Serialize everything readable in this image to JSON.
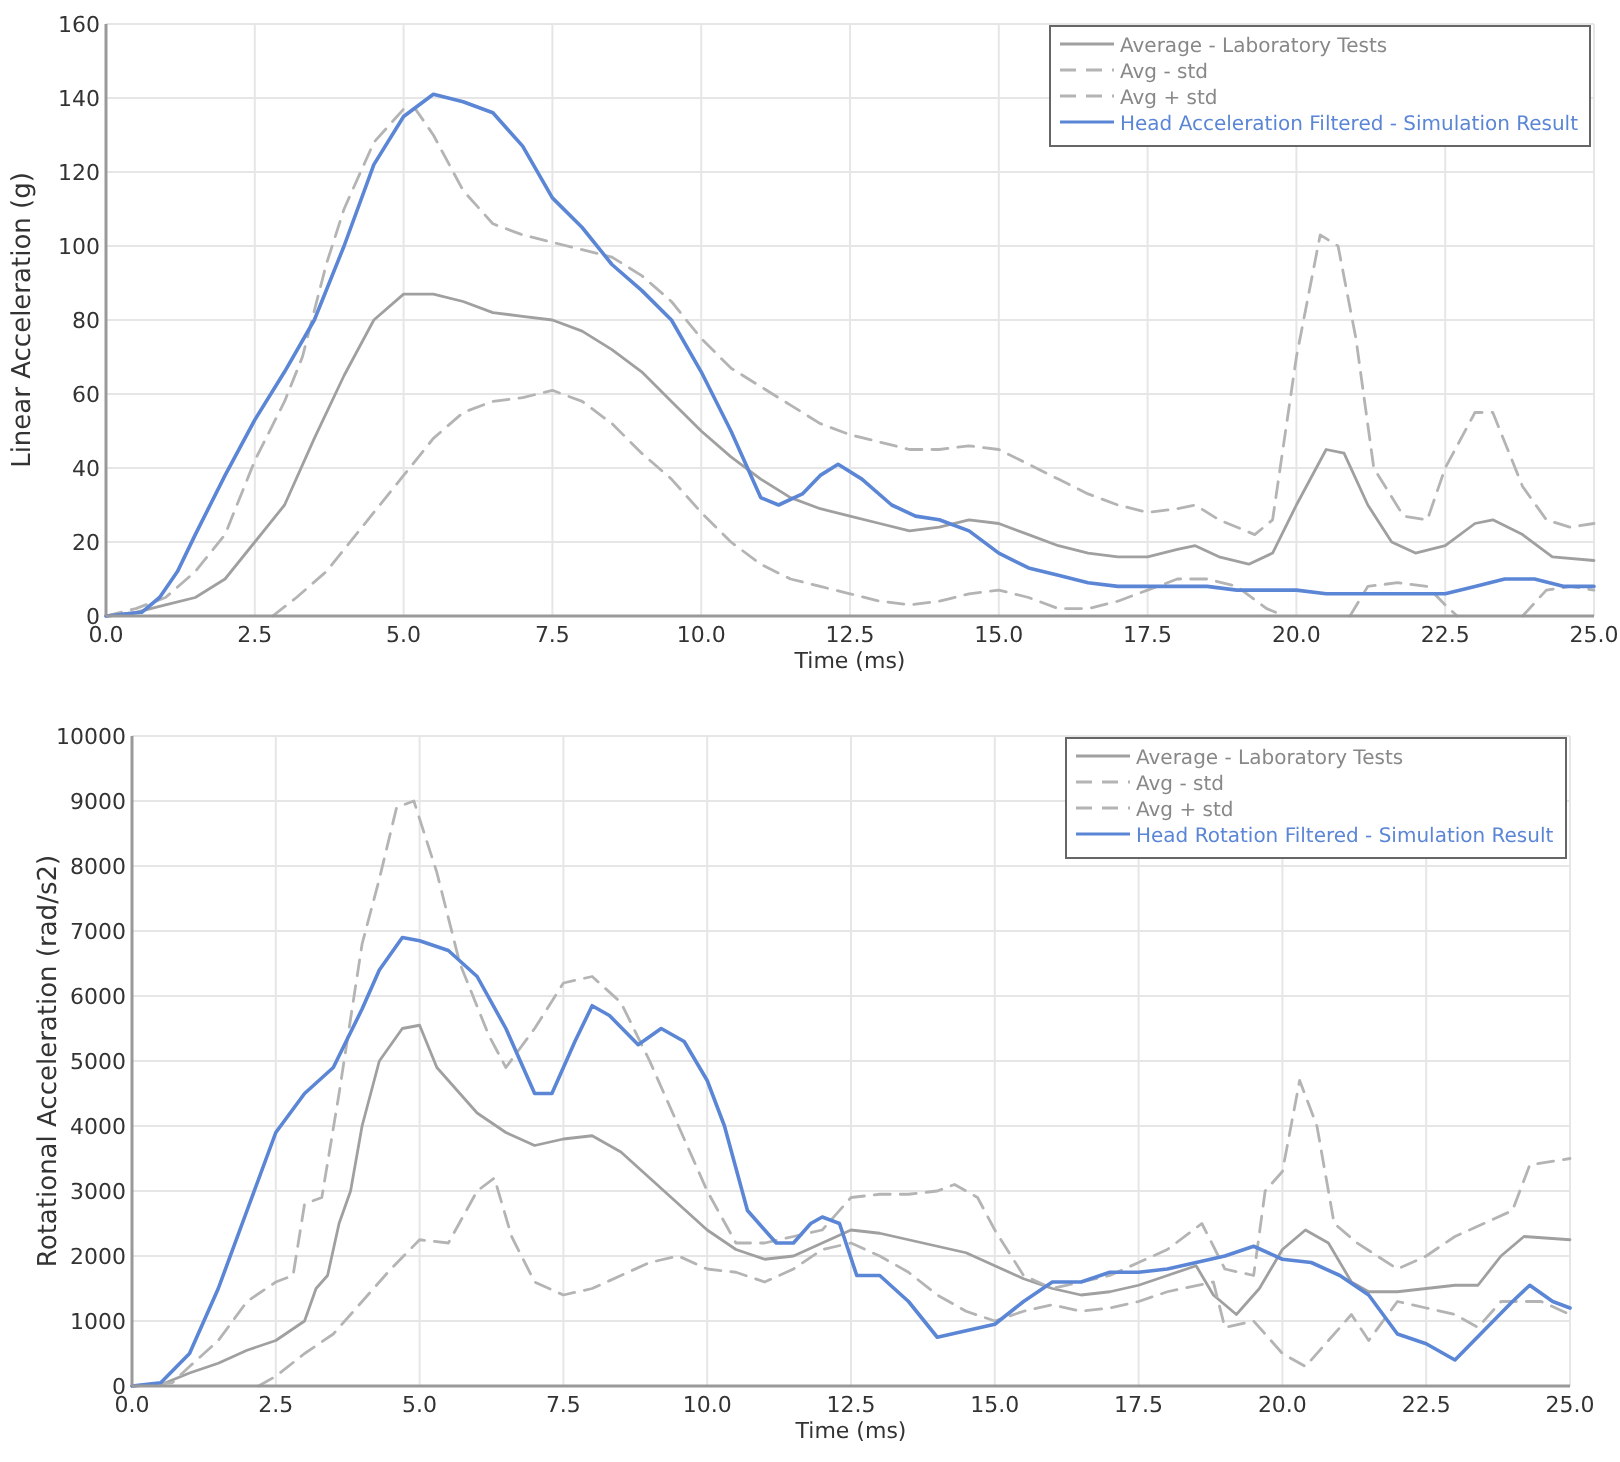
{
  "chart_data": [
    {
      "type": "line",
      "xlabel": "Time (ms)",
      "ylabel": "Linear Acceleration (g)",
      "xlim": [
        0,
        25
      ],
      "ylim": [
        0,
        160
      ],
      "xticks": [
        {
          "value": 0,
          "label": "0.0"
        },
        {
          "value": 2.5,
          "label": "2.5"
        },
        {
          "value": 5,
          "label": "5.0"
        },
        {
          "value": 7.5,
          "label": "7.5"
        },
        {
          "value": 10,
          "label": "10.0"
        },
        {
          "value": 12.5,
          "label": "12.5"
        },
        {
          "value": 15,
          "label": "15.0"
        },
        {
          "value": 17.5,
          "label": "17.5"
        },
        {
          "value": 20,
          "label": "20.0"
        },
        {
          "value": 22.5,
          "label": "22.5"
        },
        {
          "value": 25,
          "label": "25.0"
        }
      ],
      "yticks": [
        0,
        20,
        40,
        60,
        80,
        100,
        120,
        140,
        160
      ],
      "grid": true,
      "legend": "top right",
      "series": [
        {
          "name": "Average - Laboratory Tests",
          "color": "#a0a0a0",
          "line_style": "solid",
          "x": [
            0,
            0.5,
            1,
            1.5,
            2,
            2.5,
            3,
            3.5,
            4,
            4.5,
            5,
            5.5,
            6,
            6.5,
            7,
            7.5,
            8,
            8.5,
            9,
            9.5,
            10,
            10.5,
            11,
            11.5,
            12,
            12.5,
            13,
            13.5,
            14,
            14.5,
            15,
            15.5,
            16,
            16.5,
            17,
            17.5,
            18,
            18.3,
            18.7,
            19.2,
            19.6,
            20,
            20.5,
            20.8,
            21.2,
            21.6,
            22,
            22.5,
            23,
            23.3,
            23.8,
            24.3,
            25
          ],
          "values": [
            0,
            1,
            3,
            5,
            10,
            20,
            30,
            48,
            65,
            80,
            87,
            87,
            85,
            82,
            81,
            80,
            77,
            72,
            66,
            58,
            50,
            43,
            37,
            32,
            29,
            27,
            25,
            23,
            24,
            26,
            25,
            22,
            19,
            17,
            16,
            16,
            18,
            19,
            16,
            14,
            17,
            30,
            45,
            44,
            30,
            20,
            17,
            19,
            25,
            26,
            22,
            16,
            15
          ]
        },
        {
          "name": "Avg - std",
          "color": "#b4b4b4",
          "line_style": "dashed",
          "x": [
            2.8,
            3.2,
            3.7,
            4,
            4.5,
            5,
            5.5,
            6,
            6.5,
            7,
            7.5,
            8,
            8.5,
            9,
            9.5,
            10,
            10.5,
            11,
            11.5,
            12,
            12.5,
            13,
            13.5,
            14,
            14.5,
            15,
            15.5,
            16,
            16.5,
            17,
            17.5,
            18,
            18.5,
            19,
            19.5,
            19.8,
            20.3,
            20.9,
            21.2,
            21.7,
            22.2,
            22.5,
            22.7,
            23.2,
            23.8,
            24.2,
            24.6,
            25
          ],
          "values": [
            0,
            5,
            12,
            18,
            28,
            38,
            48,
            55,
            58,
            59,
            61,
            58,
            52,
            44,
            37,
            28,
            20,
            14,
            10,
            8,
            6,
            4,
            3,
            4,
            6,
            7,
            5,
            2,
            2,
            4,
            7,
            10,
            10,
            8,
            2,
            0,
            null,
            0,
            8,
            9,
            8,
            3,
            0,
            null,
            0,
            7,
            8,
            7
          ]
        },
        {
          "name": "Avg + std",
          "color": "#b4b4b4",
          "line_style": "dashed",
          "x": [
            0,
            0.5,
            1,
            1.5,
            2,
            2.5,
            3,
            3.3,
            3.7,
            4,
            4.5,
            5,
            5.2,
            5.5,
            6,
            6.5,
            7,
            7.5,
            8,
            8.5,
            9,
            9.5,
            10,
            10.5,
            11,
            11.5,
            12,
            12.5,
            13,
            13.5,
            14,
            14.5,
            15,
            15.5,
            16,
            16.5,
            17,
            17.5,
            18,
            18.3,
            18.7,
            19.3,
            19.6,
            20,
            20.4,
            20.7,
            21,
            21.3,
            21.8,
            22.2,
            22.5,
            23,
            23.3,
            23.8,
            24.2,
            24.6,
            25
          ],
          "values": [
            0,
            2,
            5,
            12,
            22,
            42,
            58,
            70,
            95,
            110,
            128,
            137,
            137,
            130,
            115,
            106,
            103,
            101,
            99,
            97,
            92,
            85,
            75,
            67,
            62,
            57,
            52,
            49,
            47,
            45,
            45,
            46,
            45,
            41,
            37,
            33,
            30,
            28,
            29,
            30,
            26,
            22,
            26,
            70,
            103,
            100,
            75,
            40,
            27,
            26,
            40,
            55,
            55,
            35,
            26,
            24,
            25
          ]
        },
        {
          "name": "Head Acceleration Filtered - Simulation Result",
          "color": "#5b86d6",
          "line_style": "solid",
          "x": [
            0,
            0.6,
            0.9,
            1.2,
            1.5,
            2,
            2.5,
            3,
            3.5,
            4,
            4.5,
            5,
            5.5,
            6,
            6.5,
            7,
            7.5,
            8,
            8.5,
            9,
            9.5,
            10,
            10.5,
            11,
            11.3,
            11.7,
            12,
            12.3,
            12.7,
            13.2,
            13.6,
            14,
            14.5,
            15,
            15.5,
            16,
            16.5,
            17,
            17.5,
            18,
            18.5,
            19,
            19.5,
            20,
            20.5,
            21,
            21.5,
            22,
            22.5,
            23,
            23.5,
            24,
            24.5,
            25
          ],
          "values": [
            0,
            1,
            5,
            12,
            22,
            38,
            53,
            66,
            80,
            100,
            122,
            135,
            141,
            139,
            136,
            127,
            113,
            105,
            95,
            88,
            80,
            66,
            50,
            32,
            30,
            33,
            38,
            41,
            37,
            30,
            27,
            26,
            23,
            17,
            13,
            11,
            9,
            8,
            8,
            8,
            8,
            7,
            7,
            7,
            6,
            6,
            6,
            6,
            6,
            8,
            10,
            10,
            8,
            8
          ]
        }
      ]
    },
    {
      "type": "line",
      "xlabel": "Time (ms)",
      "ylabel": "Rotational Acceleration (rad/s2)",
      "xlim": [
        0,
        25
      ],
      "ylim": [
        0,
        10000
      ],
      "xticks": [
        {
          "value": 0,
          "label": "0.0"
        },
        {
          "value": 2.5,
          "label": "2.5"
        },
        {
          "value": 5,
          "label": "5.0"
        },
        {
          "value": 7.5,
          "label": "7.5"
        },
        {
          "value": 10,
          "label": "10.0"
        },
        {
          "value": 12.5,
          "label": "12.5"
        },
        {
          "value": 15,
          "label": "15.0"
        },
        {
          "value": 17.5,
          "label": "17.5"
        },
        {
          "value": 20,
          "label": "20.0"
        },
        {
          "value": 22.5,
          "label": "22.5"
        },
        {
          "value": 25,
          "label": "25.0"
        }
      ],
      "yticks": [
        0,
        1000,
        2000,
        3000,
        4000,
        5000,
        6000,
        7000,
        8000,
        9000,
        10000
      ],
      "grid": true,
      "legend": "top right",
      "series": [
        {
          "name": "Average - Laboratory Tests",
          "color": "#a0a0a0",
          "line_style": "solid",
          "x": [
            0,
            0.5,
            1,
            1.5,
            2,
            2.5,
            3,
            3.2,
            3.4,
            3.6,
            3.8,
            4,
            4.3,
            4.7,
            5,
            5.3,
            5.7,
            6,
            6.5,
            7,
            7.5,
            8,
            8.5,
            9,
            9.5,
            10,
            10.5,
            11,
            11.5,
            12,
            12.5,
            13,
            13.5,
            14,
            14.5,
            15,
            15.5,
            16,
            16.5,
            17,
            17.5,
            18,
            18.5,
            18.8,
            19.2,
            19.6,
            20,
            20.4,
            20.8,
            21.2,
            21.5,
            22,
            22.5,
            23,
            23.4,
            23.8,
            24.2,
            25
          ],
          "values": [
            0,
            20,
            200,
            350,
            550,
            700,
            1000,
            1500,
            1700,
            2500,
            3000,
            4000,
            5000,
            5500,
            5550,
            4900,
            4500,
            4200,
            3900,
            3700,
            3800,
            3850,
            3600,
            3200,
            2800,
            2400,
            2100,
            1950,
            2000,
            2200,
            2400,
            2350,
            2250,
            2150,
            2050,
            1850,
            1650,
            1500,
            1400,
            1450,
            1550,
            1700,
            1850,
            1400,
            1100,
            1500,
            2100,
            2400,
            2200,
            1600,
            1450,
            1450,
            1500,
            1550,
            1550,
            2000,
            2300,
            2250
          ]
        },
        {
          "name": "Avg - std",
          "color": "#b4b4b4",
          "line_style": "dashed",
          "x": [
            2.2,
            2.5,
            3,
            3.5,
            4,
            4.5,
            5,
            5.5,
            6,
            6.3,
            6.6,
            7,
            7.5,
            8,
            8.5,
            9,
            9.5,
            10,
            10.5,
            11,
            11.5,
            12,
            12.5,
            13,
            13.5,
            14,
            14.5,
            15,
            15.5,
            16,
            16.5,
            17,
            17.5,
            18,
            18.8,
            19,
            19.5,
            20,
            20.4,
            20.8,
            21.2,
            21.5,
            22,
            22.5,
            23,
            23.4,
            23.8,
            24.5,
            25
          ],
          "values": [
            0,
            150,
            500,
            800,
            1300,
            1800,
            2250,
            2200,
            3000,
            3200,
            2300,
            1600,
            1400,
            1500,
            1700,
            1900,
            2000,
            1800,
            1750,
            1600,
            1800,
            2100,
            2200,
            2000,
            1750,
            1400,
            1150,
            1000,
            1150,
            1250,
            1150,
            1200,
            1300,
            1450,
            1600,
            900,
            1000,
            500,
            300,
            700,
            1100,
            700,
            1300,
            1200,
            1100,
            900,
            1300,
            1300,
            1100
          ]
        },
        {
          "name": "Avg + std",
          "color": "#b4b4b4",
          "line_style": "dashed",
          "x": [
            0,
            0.7,
            1,
            1.5,
            2,
            2.5,
            2.8,
            3,
            3.3,
            3.6,
            4,
            4.3,
            4.6,
            4.9,
            5.3,
            5.7,
            6.2,
            6.5,
            7,
            7.5,
            8,
            8.5,
            9,
            9.5,
            10,
            10.5,
            11,
            11.5,
            12,
            12.5,
            13,
            13.5,
            14,
            14.3,
            14.7,
            15,
            15.5,
            16,
            16.5,
            17,
            17.5,
            18,
            18.6,
            19,
            19.5,
            19.7,
            20,
            20.3,
            20.6,
            20.9,
            21.3,
            22,
            22.5,
            23,
            23.5,
            24,
            24.3,
            25
          ],
          "values": [
            0,
            50,
            300,
            700,
            1300,
            1600,
            1700,
            2800,
            2900,
            4500,
            6800,
            7800,
            8900,
            9000,
            7900,
            6500,
            5400,
            4900,
            5500,
            6200,
            6300,
            5900,
            5000,
            4000,
            3000,
            2200,
            2200,
            2300,
            2400,
            2900,
            2950,
            2950,
            3000,
            3100,
            2900,
            2400,
            1700,
            1500,
            1600,
            1700,
            1900,
            2100,
            2500,
            1800,
            1700,
            3000,
            3300,
            4700,
            4000,
            2500,
            2200,
            1800,
            2000,
            2300,
            2500,
            2700,
            3400,
            3500
          ]
        },
        {
          "name": "Head Rotation Filtered - Simulation Result",
          "color": "#5b86d6",
          "line_style": "solid",
          "x": [
            0,
            0.5,
            1,
            1.5,
            2,
            2.5,
            3,
            3.5,
            4,
            4.3,
            4.7,
            5,
            5.5,
            6,
            6.5,
            7,
            7.3,
            7.7,
            8,
            8.3,
            8.8,
            9.2,
            9.6,
            10,
            10.3,
            10.7,
            11.2,
            11.5,
            11.8,
            12,
            12.3,
            12.6,
            13,
            13.5,
            14,
            14.5,
            15,
            15.5,
            16,
            16.5,
            17,
            17.5,
            18,
            18.5,
            19,
            19.5,
            20,
            20.5,
            21,
            21.5,
            22,
            22.5,
            23,
            23.5,
            24,
            24.3,
            24.7,
            25
          ],
          "values": [
            0,
            50,
            500,
            1500,
            2700,
            3900,
            4500,
            4900,
            5800,
            6400,
            6900,
            6850,
            6700,
            6300,
            5500,
            4500,
            4500,
            5300,
            5850,
            5700,
            5250,
            5500,
            5300,
            4700,
            4000,
            2700,
            2200,
            2200,
            2500,
            2600,
            2500,
            1700,
            1700,
            1300,
            750,
            850,
            950,
            1300,
            1600,
            1600,
            1750,
            1750,
            1800,
            1900,
            2000,
            2150,
            1950,
            1900,
            1700,
            1400,
            800,
            650,
            400,
            850,
            1300,
            1550,
            1300,
            1200
          ]
        }
      ]
    }
  ]
}
